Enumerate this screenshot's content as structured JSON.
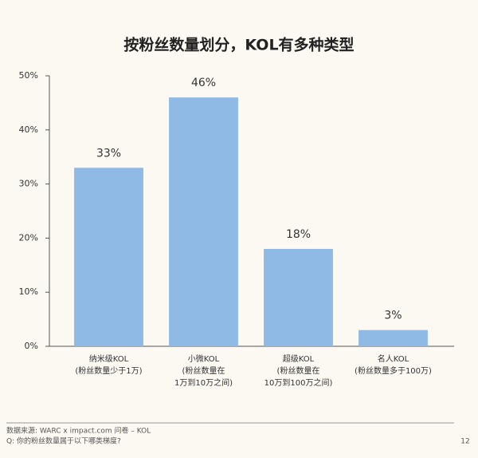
{
  "chart_data": {
    "type": "bar",
    "title": "按粉丝数量划分，KOL有多种类型",
    "categories": [
      [
        "纳米级KOL",
        "(粉丝数量少于1万)"
      ],
      [
        "小微KOL",
        "(粉丝数量在",
        "1万到10万之间)"
      ],
      [
        "超级KOL",
        "(粉丝数量在",
        "10万到100万之间)"
      ],
      [
        "名人KOL",
        "(粉丝数量多于100万)"
      ]
    ],
    "values": [
      33,
      46,
      18,
      3
    ],
    "value_labels": [
      "33%",
      "46%",
      "18%",
      "3%"
    ],
    "color": "#8fbae6",
    "ylim": [
      0,
      50
    ],
    "yticks": [
      {
        "value": 0,
        "label": "0%"
      },
      {
        "value": 10,
        "label": "10%"
      },
      {
        "value": 20,
        "label": "20%"
      },
      {
        "value": 30,
        "label": "30%"
      },
      {
        "value": 40,
        "label": "40%"
      },
      {
        "value": 50,
        "label": "50%"
      }
    ],
    "grid": false
  },
  "footer": {
    "source": "数据来源: WARC x impact.com 问卷 – KOL",
    "question": "Q: 你的粉丝数量属于以下哪类梯度?",
    "page": "12"
  }
}
